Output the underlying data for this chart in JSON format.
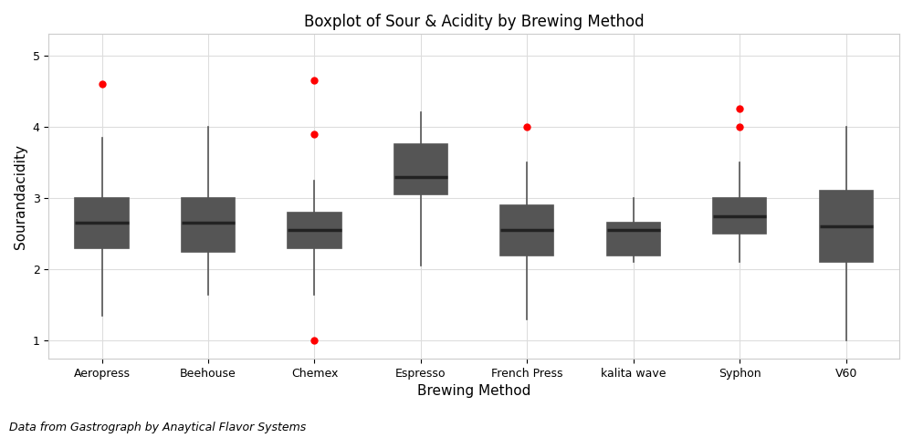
{
  "title": "Boxplot of Sour & Acidity by Brewing Method",
  "xlabel": "Brewing Method",
  "ylabel": "Sourandacidity",
  "caption": "Data from Gastrograph by Anaytical Flavor Systems",
  "ylim": [
    0.75,
    5.3
  ],
  "yticks": [
    1,
    2,
    3,
    4,
    5
  ],
  "fig_bg": "#ffffff",
  "plot_bg": "#ffffff",
  "grid_color": "#dddddd",
  "box_edge_color": "#555555",
  "median_color": "#222222",
  "outlier_color": "red",
  "categories": [
    "Aeropress",
    "Beehouse",
    "Chemex",
    "Espresso",
    "French Press",
    "kalita wave",
    "Syphon",
    "V60"
  ],
  "box_stats": {
    "Aeropress": {
      "q1": 2.3,
      "median": 2.65,
      "q3": 3.0,
      "whislo": 1.35,
      "whishi": 3.85,
      "fliers": [
        4.6
      ]
    },
    "Beehouse": {
      "q1": 2.25,
      "median": 2.65,
      "q3": 3.0,
      "whislo": 1.65,
      "whishi": 4.0,
      "fliers": []
    },
    "Chemex": {
      "q1": 2.3,
      "median": 2.55,
      "q3": 2.8,
      "whislo": 1.65,
      "whishi": 3.25,
      "fliers": [
        3.9,
        4.65,
        1.0
      ]
    },
    "Espresso": {
      "q1": 3.05,
      "median": 3.3,
      "q3": 3.75,
      "whislo": 2.05,
      "whishi": 4.2,
      "fliers": []
    },
    "French Press": {
      "q1": 2.2,
      "median": 2.55,
      "q3": 2.9,
      "whislo": 1.3,
      "whishi": 3.5,
      "fliers": [
        4.0
      ]
    },
    "kalita wave": {
      "q1": 2.2,
      "median": 2.55,
      "q3": 2.65,
      "whislo": 2.1,
      "whishi": 3.0,
      "fliers": []
    },
    "Syphon": {
      "q1": 2.5,
      "median": 2.75,
      "q3": 3.0,
      "whislo": 2.1,
      "whishi": 3.5,
      "fliers": [
        4.25,
        4.0
      ]
    },
    "V60": {
      "q1": 2.1,
      "median": 2.6,
      "q3": 3.1,
      "whislo": 1.0,
      "whishi": 4.0,
      "fliers": []
    }
  }
}
